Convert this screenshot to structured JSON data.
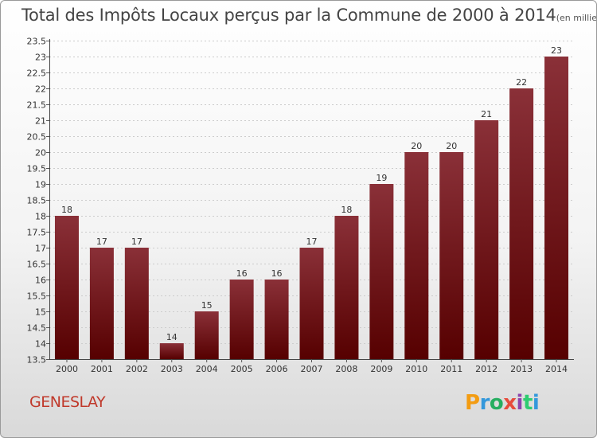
{
  "header": {
    "title": "Total des Impôts Locaux perçus par la Commune de 2000 à 2014",
    "unit": "(en milliers d'€)"
  },
  "footer": {
    "commune": "GENESLAY",
    "brand": [
      "P",
      "r",
      "o",
      "x",
      "i",
      "t",
      "i"
    ],
    "brand_colors": [
      "#f39c12",
      "#3498db",
      "#27ae60",
      "#e74c3c",
      "#8e44ad",
      "#2ecc71",
      "#3498db"
    ]
  },
  "colors": {
    "bar_top": "#8a3038",
    "bar_bottom": "#560000",
    "label": "#333333",
    "grid": "#cccccc"
  },
  "chart_data": {
    "type": "bar",
    "title": "Total des Impôts Locaux perçus par la Commune de 2000 à 2014",
    "xlabel": "",
    "ylabel": "(en milliers d'€)",
    "categories": [
      "2000",
      "2001",
      "2002",
      "2003",
      "2004",
      "2005",
      "2006",
      "2007",
      "2008",
      "2009",
      "2010",
      "2011",
      "2012",
      "2013",
      "2014"
    ],
    "values": [
      18,
      17,
      17,
      14,
      15,
      16,
      16,
      17,
      18,
      19,
      20,
      20,
      21,
      22,
      23
    ],
    "ylim": [
      13.5,
      23.5
    ],
    "yticks": [
      "13.5",
      "14",
      "14.5",
      "15",
      "15.5",
      "16",
      "16.5",
      "17",
      "17.5",
      "18",
      "18.5",
      "19",
      "19.5",
      "20",
      "20.5",
      "21",
      "21.5",
      "22",
      "22.5",
      "23",
      "23.5"
    ],
    "grid": true
  }
}
